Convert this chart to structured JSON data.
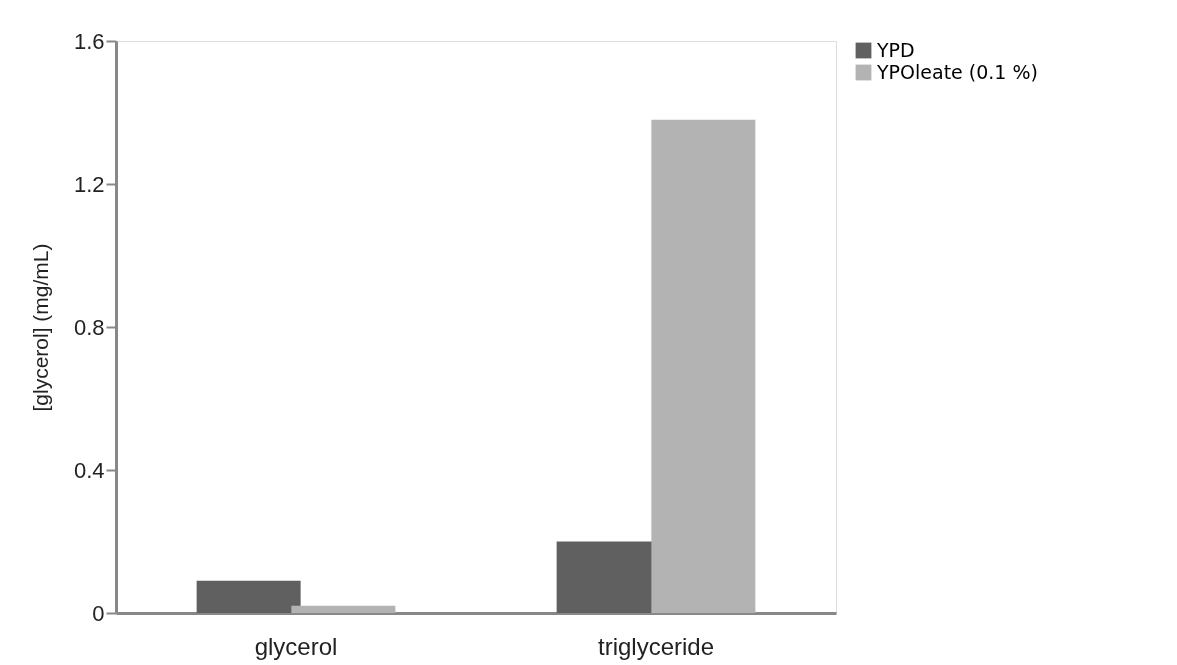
{
  "chart_data": {
    "type": "bar",
    "ylabel": "[glycerol] (mg/mL)",
    "categories": [
      "glycerol",
      "triglyceride"
    ],
    "series": [
      {
        "name": "YPD",
        "color": "#5f605f",
        "values": [
          0.09,
          0.2
        ]
      },
      {
        "name": "YPOleate (0.1 %)",
        "color": "#b2b3b2",
        "values": [
          0.02,
          1.38
        ]
      }
    ],
    "ylim": [
      0,
      1.6
    ],
    "yticks": [
      0,
      0.4,
      0.8,
      1.2,
      1.6
    ],
    "grid": false,
    "legend": "right"
  }
}
